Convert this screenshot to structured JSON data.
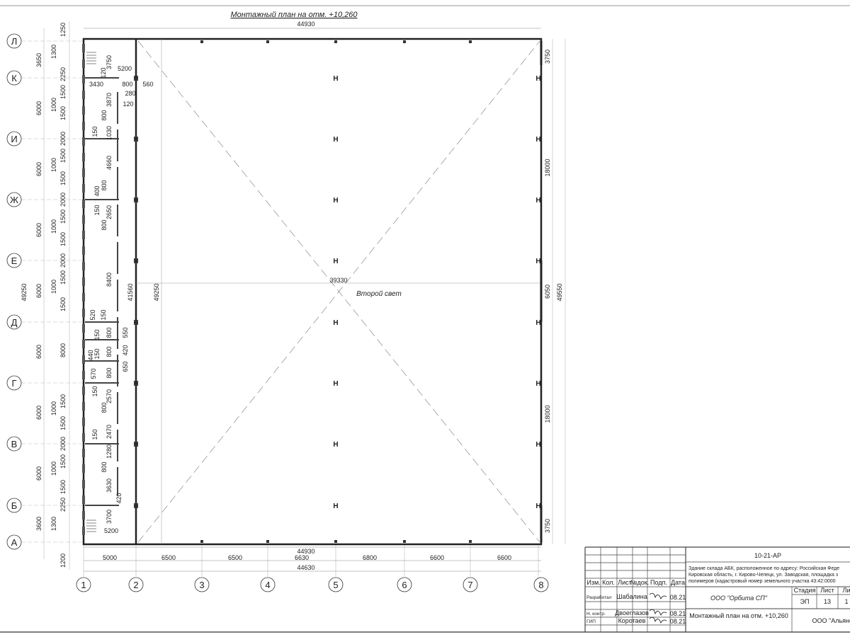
{
  "title": "Монтажный план на отм. +10,260",
  "room_label": "Второй свет",
  "axes_letters": [
    "Л",
    "К",
    "И",
    "Ж",
    "Е",
    "Д",
    "Г",
    "В",
    "Б",
    "А"
  ],
  "axes_numbers": [
    "1",
    "2",
    "3",
    "4",
    "5",
    "6",
    "7",
    "8"
  ],
  "overall_dims": {
    "top": "44930",
    "bottom": "44930",
    "total_bottom": "44630",
    "left_total": "49250",
    "right_total": "49550",
    "middle": "39330",
    "inner_v1": "41560",
    "inner_v2": "49250"
  },
  "bottom_dims": [
    "5000",
    "6500",
    "6500",
    "6630",
    "6800",
    "6600",
    "6600"
  ],
  "left_chain_axes": [
    "3650",
    "6000",
    "6000",
    "6000",
    "6000",
    "6000",
    "6000",
    "6000",
    "3600"
  ],
  "left_chain_openings": [
    "1250",
    "2250",
    "1500",
    "1500",
    "2000",
    "1500",
    "1500",
    "2000",
    "1500",
    "1500",
    "2000",
    "1500",
    "1500",
    "8000",
    "1500",
    "1500",
    "2000",
    "1500",
    "1500",
    "2250",
    "1200"
  ],
  "left_chain_windows": [
    "1300",
    "1000",
    "1000",
    "1000",
    "1000",
    "1000",
    "1000",
    "1300"
  ],
  "right_dims": [
    "3750",
    "18000",
    "6050",
    "18000",
    "3750"
  ],
  "interior_dims": [
    "3750",
    "5200",
    "120",
    "3430",
    "800",
    "280",
    "560",
    "120",
    "3870",
    "800",
    "150",
    "1030",
    "4660",
    "400",
    "800",
    "150",
    "2650",
    "800",
    "8400",
    "520",
    "150",
    "550",
    "150",
    "800",
    "440",
    "150",
    "800",
    "420",
    "650",
    "570",
    "800",
    "150",
    "2570",
    "800",
    "150",
    "2470",
    "1280",
    "800",
    "3630",
    "420",
    "3700",
    "5200"
  ],
  "title_block": {
    "code": "10-21-АР",
    "address": [
      "Здание склада АБК, расположенное по адресу: Российская Феде",
      "Кировская область, г. Кирово-Чепецк, ул. Заводская, площадка з",
      "полимеров (кадастровый номер земельного участка 43:42:0000"
    ],
    "headers": [
      "Изм.",
      "Кол.",
      "Лист",
      "№док.",
      "Подп.",
      "Дата"
    ],
    "people": [
      {
        "role": "Разработал",
        "name": "Шабалина",
        "date": "08.21"
      },
      {
        "role": "Н. контр.",
        "name": "Двоеглазов",
        "date": "08.21"
      },
      {
        "role": "ГИП",
        "name": "Коротаев",
        "date": "08.21"
      }
    ],
    "company": "ООО \"Орбита СП\"",
    "stage_headers": [
      "Стадия",
      "Лист",
      "Ли"
    ],
    "stage_values": [
      "ЭП",
      "13",
      "1"
    ],
    "sheet_title": "Монтажный план на отм. +10,260",
    "org": "ООО \"Альянс"
  },
  "colors": {
    "line": "#222222",
    "thin": "#888888",
    "wall": "#555555"
  }
}
